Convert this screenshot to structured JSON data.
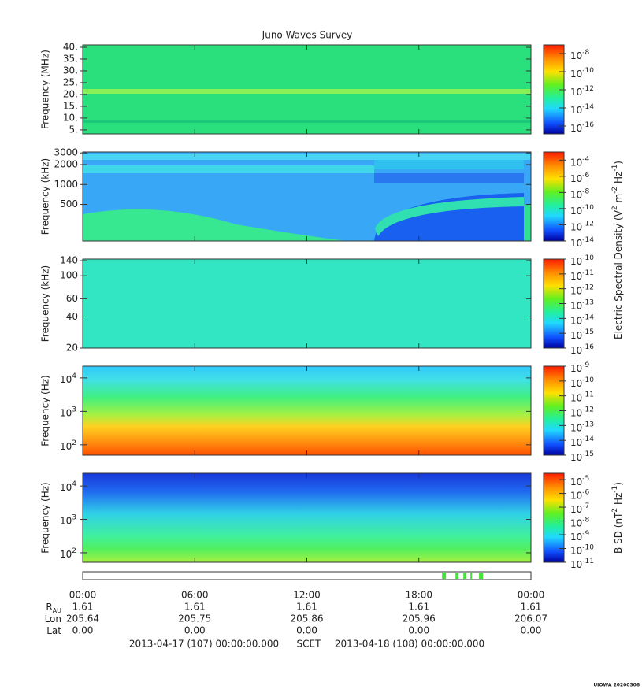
{
  "title": "Juno Waves Survey",
  "panels": [
    {
      "ylabel": "Frequency (MHz)",
      "yscale": "linear",
      "ylim": [
        3.3,
        41
      ],
      "yticks": [
        {
          "value": 5,
          "label": "5."
        },
        {
          "value": 10,
          "label": "10."
        },
        {
          "value": 15,
          "label": "15."
        },
        {
          "value": 20,
          "label": "20."
        },
        {
          "value": 25,
          "label": "25."
        },
        {
          "value": 30,
          "label": "30."
        },
        {
          "value": 35,
          "label": "35."
        },
        {
          "value": 40,
          "label": "40."
        }
      ],
      "colorbar": {
        "clim": [
          1.35e-17,
          9.1e-08
        ],
        "ticks": [
          {
            "value": 1e-08,
            "base": "10",
            "exponent": "-8"
          },
          {
            "value": 1e-10,
            "base": "10",
            "exponent": "-10"
          },
          {
            "value": 1e-12,
            "base": "10",
            "exponent": "-12"
          },
          {
            "value": 1e-14,
            "base": "10",
            "exponent": "-14"
          },
          {
            "value": 1e-16,
            "base": "10",
            "exponent": "-16"
          }
        ]
      }
    },
    {
      "ylabel": "Frequency (kHz)",
      "yscale": "log",
      "ylim": [
        140,
        3100
      ],
      "yticks": [
        500,
        1000,
        2000,
        3000
      ],
      "colorbar": {
        "clim": [
          1e-14,
          0.001
        ],
        "ticks": [
          {
            "value": 0.0001,
            "base": "10",
            "exponent": "-4"
          },
          {
            "value": 1e-06,
            "base": "10",
            "exponent": "-6"
          },
          {
            "value": 1e-08,
            "base": "10",
            "exponent": "-8"
          },
          {
            "value": 1e-10,
            "base": "10",
            "exponent": "-10"
          },
          {
            "value": 1e-12,
            "base": "10",
            "exponent": "-12"
          },
          {
            "value": 1e-14,
            "base": "10",
            "exponent": "-14"
          }
        ]
      }
    },
    {
      "ylabel": "Frequency (kHz)",
      "yscale": "log",
      "ylim": [
        20,
        145
      ],
      "yticks": [
        20,
        40,
        60,
        100,
        140
      ],
      "colorbar": {
        "clim": [
          1e-16,
          1e-10
        ],
        "ticks": [
          {
            "value": 1e-10,
            "base": "10",
            "exponent": "-10"
          },
          {
            "value": 1e-11,
            "base": "10",
            "exponent": "-11"
          },
          {
            "value": 1e-12,
            "base": "10",
            "exponent": "-12"
          },
          {
            "value": 1e-13,
            "base": "10",
            "exponent": "-13"
          },
          {
            "value": 1e-14,
            "base": "10",
            "exponent": "-14"
          },
          {
            "value": 1e-15,
            "base": "10",
            "exponent": "-15"
          },
          {
            "value": 1e-16,
            "base": "10",
            "exponent": "-16"
          }
        ]
      }
    },
    {
      "ylabel": "Frequency (Hz)",
      "yscale": "log",
      "ylim": [
        49,
        22400
      ],
      "yticks": [
        {
          "value": 100,
          "base": "10",
          "exponent": "2"
        },
        {
          "value": 1000,
          "base": "10",
          "exponent": "3"
        },
        {
          "value": 10000,
          "base": "10",
          "exponent": "4"
        }
      ],
      "colorbar": {
        "clim": [
          1e-15,
          1e-09
        ],
        "ticks": [
          {
            "value": 1e-09,
            "base": "10",
            "exponent": "-9"
          },
          {
            "value": 1e-10,
            "base": "10",
            "exponent": "-10"
          },
          {
            "value": 1e-11,
            "base": "10",
            "exponent": "-11"
          },
          {
            "value": 1e-12,
            "base": "10",
            "exponent": "-12"
          },
          {
            "value": 1e-13,
            "base": "10",
            "exponent": "-13"
          },
          {
            "value": 1e-14,
            "base": "10",
            "exponent": "-14"
          },
          {
            "value": 1e-15,
            "base": "10",
            "exponent": "-15"
          }
        ]
      }
    },
    {
      "ylabel": "Frequency (Hz)",
      "yscale": "log",
      "ylim": [
        52,
        24000
      ],
      "yticks": [
        {
          "value": 100,
          "base": "10",
          "exponent": "2"
        },
        {
          "value": 1000,
          "base": "10",
          "exponent": "3"
        },
        {
          "value": 10000,
          "base": "10",
          "exponent": "4"
        }
      ],
      "colorbar": {
        "clim": [
          1e-11,
          2.9e-05
        ],
        "ticks": [
          {
            "value": 1e-05,
            "base": "10",
            "exponent": "-5"
          },
          {
            "value": 1e-06,
            "base": "10",
            "exponent": "-6"
          },
          {
            "value": 1e-07,
            "base": "10",
            "exponent": "-7"
          },
          {
            "value": 1e-08,
            "base": "10",
            "exponent": "-8"
          },
          {
            "value": 1e-09,
            "base": "10",
            "exponent": "-9"
          },
          {
            "value": 1e-10,
            "base": "10",
            "exponent": "-10"
          },
          {
            "value": 1e-11,
            "base": "10",
            "exponent": "-11"
          }
        ]
      }
    }
  ],
  "colorbar_labels": [
    {
      "parts": [
        "Electric Spectral Density (V",
        "2",
        " m",
        "-2",
        " Hz",
        "-1",
        ")"
      ]
    },
    {
      "parts": [
        "B SD (nT",
        "2",
        " Hz",
        "-1",
        ")"
      ]
    }
  ],
  "xaxis": {
    "xlim": [
      0,
      24
    ],
    "xticks": [
      {
        "value": 0,
        "label": "00:00"
      },
      {
        "value": 6,
        "label": "06:00"
      },
      {
        "value": 12,
        "label": "12:00"
      },
      {
        "value": 18,
        "label": "18:00"
      },
      {
        "value": 24,
        "label": "00:00"
      }
    ]
  },
  "ephemeris": [
    {
      "label": "R",
      "sub": "AU",
      "values": [
        "1.61",
        "1.61",
        "1.61",
        "1.61",
        "1.61"
      ]
    },
    {
      "label": "Lon",
      "values": [
        "205.64",
        "205.75",
        "205.86",
        "205.96",
        "206.07"
      ]
    },
    {
      "label": "Lat",
      "values": [
        "0.00",
        "0.00",
        "0.00",
        "0.00",
        "0.00"
      ]
    }
  ],
  "burst_intervals": [
    [
      19.24,
      19.45
    ],
    [
      19.96,
      20.13
    ],
    [
      20.38,
      20.55
    ],
    [
      20.76,
      20.84
    ],
    [
      21.22,
      21.43
    ]
  ],
  "footer": {
    "start": "2013-04-17 (107) 00:00:00.000",
    "frame": "SCET",
    "end": "2013-04-18 (108) 00:00:00.000"
  },
  "credit": "UIOWA 20200306"
}
